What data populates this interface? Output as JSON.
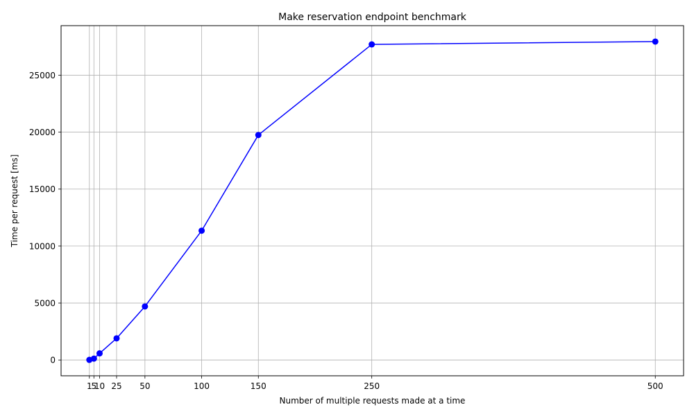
{
  "chart_data": {
    "type": "line",
    "title": "Make reservation endpoint benchmark",
    "xlabel": "Number of multiple requests made at a time",
    "ylabel": "Time per request [ms]",
    "x": [
      1,
      5,
      10,
      25,
      50,
      100,
      150,
      250,
      500
    ],
    "x_tick_labels": [
      "1",
      "5",
      "10",
      "25",
      "50",
      "100",
      "150",
      "250",
      "500"
    ],
    "series": [
      {
        "values": [
          10,
          120,
          580,
          1900,
          4700,
          11350,
          19750,
          27700,
          27950
        ],
        "color": "#0000ff",
        "marker": "circle"
      }
    ],
    "y_ticks": [
      0,
      5000,
      10000,
      15000,
      20000,
      25000
    ],
    "y_tick_labels": [
      "0",
      "5000",
      "10000",
      "15000",
      "20000",
      "25000"
    ],
    "xlim": [
      -23.95,
      524.95
    ],
    "ylim": [
      -1387,
      29347
    ],
    "grid": true,
    "grid_color": "#b0b0b0"
  }
}
